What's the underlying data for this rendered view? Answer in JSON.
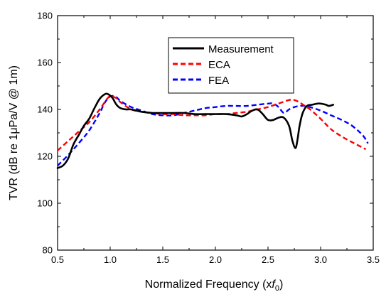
{
  "chart_data": {
    "type": "line",
    "title": "",
    "xlabel": "Normalized Frequency (x",
    "xlabel_suffix": "f",
    "xlabel_subscript": "0",
    "xlabel_close": ")",
    "ylabel": "TVR (dB re 1μPa/V @ 1m)",
    "xlim": [
      0.5,
      3.5
    ],
    "ylim": [
      80,
      180
    ],
    "xticks": [
      0.5,
      1.0,
      1.5,
      2.0,
      2.5,
      3.0,
      3.5
    ],
    "xtick_labels": [
      "0.5",
      "1.0",
      "1.5",
      "2.0",
      "2.5",
      "3.0",
      "3.5"
    ],
    "yticks": [
      80,
      100,
      120,
      140,
      160,
      180
    ],
    "ytick_labels": [
      "80",
      "100",
      "120",
      "140",
      "160",
      "180"
    ],
    "grid": false,
    "legend_position": "top-center",
    "series": [
      {
        "name": "Measurement",
        "color": "#000000",
        "style": "solid",
        "x": [
          0.5,
          0.55,
          0.6,
          0.65,
          0.7,
          0.75,
          0.8,
          0.85,
          0.9,
          0.95,
          0.98,
          1.02,
          1.06,
          1.1,
          1.15,
          1.2,
          1.3,
          1.4,
          1.5,
          1.6,
          1.7,
          1.8,
          1.9,
          2.0,
          2.1,
          2.2,
          2.25,
          2.3,
          2.35,
          2.4,
          2.45,
          2.5,
          2.55,
          2.6,
          2.65,
          2.7,
          2.73,
          2.76,
          2.78,
          2.8,
          2.83,
          2.87,
          2.92,
          2.97,
          3.0,
          3.05,
          3.08,
          3.12
        ],
        "y": [
          115,
          116,
          119,
          125,
          129,
          133,
          136,
          140.5,
          144.5,
          146.5,
          146.5,
          145,
          142,
          140.5,
          140,
          140,
          139,
          138.5,
          138.5,
          138.5,
          138.5,
          138,
          138,
          138,
          138,
          137.5,
          137,
          138,
          139.5,
          140,
          138,
          135.5,
          135.5,
          136.5,
          136.5,
          133,
          127,
          123.5,
          127,
          133,
          138.5,
          141.5,
          142,
          142.5,
          142.5,
          142,
          141.5,
          142
        ]
      },
      {
        "name": "ECA",
        "color": "#ff0000",
        "style": "dashed",
        "x": [
          0.5,
          0.6,
          0.7,
          0.8,
          0.9,
          0.97,
          1.0,
          1.05,
          1.1,
          1.2,
          1.3,
          1.4,
          1.5,
          1.6,
          1.7,
          1.8,
          1.9,
          2.0,
          2.1,
          2.2,
          2.3,
          2.4,
          2.5,
          2.6,
          2.7,
          2.75,
          2.8,
          2.85,
          2.9,
          3.0,
          3.1,
          3.2,
          3.3,
          3.43
        ],
        "y": [
          122.5,
          126.5,
          130.5,
          134.5,
          140,
          144.5,
          145.5,
          145,
          143,
          140,
          139,
          138.5,
          138,
          138,
          137.5,
          137.5,
          137.5,
          138,
          138,
          138.5,
          139,
          140,
          141,
          142.5,
          144,
          144,
          143,
          141.5,
          140,
          136,
          131.5,
          128.5,
          126,
          123
        ]
      },
      {
        "name": "FEA",
        "color": "#0000ff",
        "style": "dashed",
        "x": [
          0.5,
          0.6,
          0.7,
          0.8,
          0.9,
          0.95,
          1.0,
          1.05,
          1.1,
          1.2,
          1.3,
          1.4,
          1.5,
          1.6,
          1.7,
          1.8,
          1.9,
          2.0,
          2.1,
          2.2,
          2.3,
          2.4,
          2.5,
          2.55,
          2.6,
          2.65,
          2.7,
          2.75,
          2.8,
          2.85,
          2.9,
          3.0,
          3.1,
          3.2,
          3.3,
          3.4,
          3.45
        ],
        "y": [
          116,
          120.5,
          125.5,
          131,
          138.5,
          143,
          145.5,
          145.5,
          143.5,
          141,
          139.5,
          138,
          137.5,
          137.5,
          138.5,
          139.5,
          140.5,
          141,
          141.5,
          141.5,
          141.5,
          142,
          142.5,
          142.5,
          141,
          138.5,
          140,
          141,
          141.5,
          141.5,
          141,
          139.5,
          137.5,
          135.5,
          133,
          129,
          125.5
        ]
      }
    ]
  }
}
